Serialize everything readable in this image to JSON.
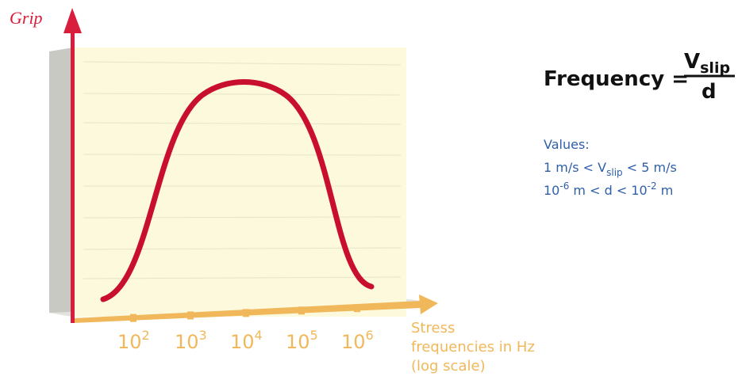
{
  "y_axis_label": "Grip",
  "x_axis_label": [
    "Stress",
    "frequencies in Hz",
    "(log scale)"
  ],
  "x_ticks": [
    {
      "base": "10",
      "exponent": "2"
    },
    {
      "base": "10",
      "exponent": "3"
    },
    {
      "base": "10",
      "exponent": "4"
    },
    {
      "base": "10",
      "exponent": "5"
    },
    {
      "base": "10",
      "exponent": "6"
    }
  ],
  "formula": {
    "lhs": "Frequency =",
    "numerator": {
      "base": "V",
      "sub": "slip"
    },
    "denominator": "d"
  },
  "values": {
    "title": "Values:",
    "lines": [
      [
        {
          "text": "1 m/s < V"
        },
        {
          "sub": "slip"
        },
        {
          "text": " < 5 m/s"
        }
      ],
      [
        {
          "text": "10"
        },
        {
          "sup": "-6"
        },
        {
          "text": " m < d < 10"
        },
        {
          "sup": "-2"
        },
        {
          "text": " m"
        }
      ]
    ]
  }
}
